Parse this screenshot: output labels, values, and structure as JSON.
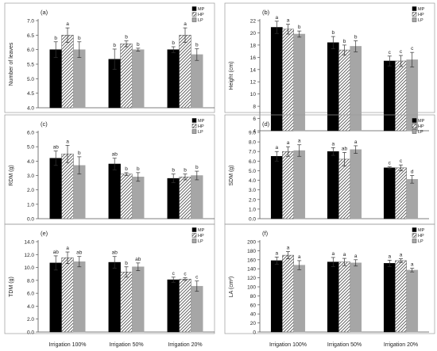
{
  "figure": {
    "legend": [
      "MP",
      "HP",
      "LP"
    ],
    "treatments": [
      "Irrigation 100%",
      "Irrigation 50%",
      "Irrigation 20%"
    ]
  },
  "chart_data": [
    {
      "type": "bar",
      "panel": "(a)",
      "xlabel": "",
      "ylabel": "Number of leaves",
      "ylim": [
        4.0,
        7.0
      ],
      "yticks": [
        "4.0",
        "4.5",
        "5.0",
        "5.5",
        "6.0",
        "6.5",
        "7.0"
      ],
      "categories": [
        "Irrigation 100%",
        "Irrigation 50%",
        "Irrigation 20%"
      ],
      "series": [
        {
          "name": "MP",
          "values": [
            6.0,
            5.67,
            6.0
          ],
          "errors": [
            0.27,
            0.35,
            0.1
          ],
          "letters": [
            "b",
            "b",
            "b"
          ]
        },
        {
          "name": "HP",
          "values": [
            6.5,
            6.2,
            6.5
          ],
          "errors": [
            0.25,
            0.1,
            0.25
          ],
          "letters": [
            "a",
            "b",
            "a"
          ]
        },
        {
          "name": "LP",
          "values": [
            6.0,
            6.0,
            5.83
          ],
          "errors": [
            0.27,
            0.05,
            0.2
          ],
          "letters": [
            "b",
            "b",
            "b"
          ]
        }
      ],
      "legend_position": "top-right",
      "grid": false
    },
    {
      "type": "bar",
      "panel": "(b)",
      "xlabel": "",
      "ylabel": "Height (cm)",
      "ylim": [
        4,
        22
      ],
      "yticks": [
        "4",
        "6",
        "8",
        "10",
        "12",
        "14",
        "16",
        "18",
        "20",
        "22"
      ],
      "categories": [
        "Irrigation 100%",
        "Irrigation 50%",
        "Irrigation 20%"
      ],
      "series": [
        {
          "name": "MP",
          "values": [
            20.9,
            18.4,
            15.4
          ],
          "errors": [
            1.0,
            1.0,
            0.8
          ],
          "letters": [
            "a",
            "b",
            "c"
          ]
        },
        {
          "name": "HP",
          "values": [
            20.6,
            17.2,
            15.4
          ],
          "errors": [
            0.8,
            0.8,
            0.9
          ],
          "letters": [
            "a",
            "b",
            "c"
          ]
        },
        {
          "name": "LP",
          "values": [
            19.8,
            17.8,
            15.6
          ],
          "errors": [
            0.5,
            0.9,
            1.2
          ],
          "letters": [
            "b",
            "b",
            "c"
          ]
        }
      ],
      "legend_position": "top-right",
      "grid": false
    },
    {
      "type": "bar",
      "panel": "(c)",
      "xlabel": "",
      "ylabel": "RDM (g)",
      "ylim": [
        0.0,
        6.0
      ],
      "yticks": [
        "0.0",
        "1.0",
        "2.0",
        "3.0",
        "4.0",
        "5.0",
        "6.0"
      ],
      "categories": [
        "Irrigation 100%",
        "Irrigation 50%",
        "Irrigation 20%"
      ],
      "series": [
        {
          "name": "MP",
          "values": [
            4.2,
            3.8,
            2.8
          ],
          "errors": [
            0.5,
            0.4,
            0.3
          ],
          "letters": [
            "ab",
            "ab",
            "b"
          ]
        },
        {
          "name": "HP",
          "values": [
            4.5,
            3.1,
            2.9
          ],
          "errors": [
            0.6,
            0.1,
            0.2
          ],
          "letters": [
            "a",
            "b",
            "b"
          ]
        },
        {
          "name": "LP",
          "values": [
            3.7,
            2.9,
            3.0
          ],
          "errors": [
            0.6,
            0.3,
            0.3
          ],
          "letters": [
            "b",
            "b",
            "b"
          ]
        }
      ],
      "legend_position": "top-right",
      "grid": false
    },
    {
      "type": "bar",
      "panel": "(d)",
      "xlabel": "",
      "ylabel": "SDM (g)",
      "ylim": [
        0.0,
        9.0
      ],
      "yticks": [
        "0.0",
        "1.0",
        "2.0",
        "3.0",
        "4.0",
        "5.0",
        "6.0",
        "7.0",
        "8.0",
        "9.0"
      ],
      "categories": [
        "Irrigation 100%",
        "Irrigation 50%",
        "Irrigation 20%"
      ],
      "series": [
        {
          "name": "MP",
          "values": [
            6.5,
            7.0,
            5.3
          ],
          "errors": [
            0.5,
            0.4,
            0.1
          ],
          "letters": [
            "a",
            "a",
            "c"
          ]
        },
        {
          "name": "HP",
          "values": [
            7.0,
            6.2,
            5.3
          ],
          "errors": [
            0.5,
            0.7,
            0.3
          ],
          "letters": [
            "a",
            "ab",
            "c"
          ]
        },
        {
          "name": "LP",
          "values": [
            7.1,
            7.2,
            4.1
          ],
          "errors": [
            0.6,
            0.4,
            0.4
          ],
          "letters": [
            "a",
            "a",
            "d"
          ]
        }
      ],
      "legend_position": "top-right",
      "grid": false
    },
    {
      "type": "bar",
      "panel": "(e)",
      "xlabel": "",
      "ylabel": "TDM (g)",
      "ylim": [
        0.0,
        14.0
      ],
      "yticks": [
        "0.0",
        "2.0",
        "4.0",
        "6.0",
        "8.0",
        "10.0",
        "12.0",
        "14.0"
      ],
      "categories": [
        "Irrigation 100%",
        "Irrigation 50%",
        "Irrigation 20%"
      ],
      "series": [
        {
          "name": "MP",
          "values": [
            10.7,
            10.8,
            8.1
          ],
          "errors": [
            1.1,
            0.9,
            0.4
          ],
          "letters": [
            "ab",
            "ab",
            "c"
          ]
        },
        {
          "name": "HP",
          "values": [
            11.5,
            9.3,
            8.2
          ],
          "errors": [
            0.9,
            0.8,
            0.2
          ],
          "letters": [
            "a",
            "b",
            "c"
          ]
        },
        {
          "name": "LP",
          "values": [
            10.9,
            10.1,
            7.1
          ],
          "errors": [
            0.8,
            0.6,
            0.8
          ],
          "letters": [
            "ab",
            "ab",
            "c"
          ]
        }
      ],
      "legend_position": "top-right",
      "grid": false
    },
    {
      "type": "bar",
      "panel": "(f)",
      "xlabel": "",
      "ylabel": "LA (cm²)",
      "ylim": [
        0,
        200
      ],
      "yticks": [
        "0",
        "20",
        "40",
        "60",
        "80",
        "100",
        "120",
        "140",
        "160",
        "180",
        "200"
      ],
      "categories": [
        "Irrigation 100%",
        "Irrigation 50%",
        "Irrigation 20%"
      ],
      "series": [
        {
          "name": "MP",
          "values": [
            158,
            155,
            152
          ],
          "errors": [
            8,
            10,
            7
          ],
          "letters": [
            "a",
            "a",
            "a"
          ]
        },
        {
          "name": "HP",
          "values": [
            170,
            155,
            158
          ],
          "errors": [
            8,
            8,
            4
          ],
          "letters": [
            "a",
            "a",
            "a"
          ]
        },
        {
          "name": "LP",
          "values": [
            148,
            153,
            137
          ],
          "errors": [
            10,
            7,
            4
          ],
          "letters": [
            "a",
            "a",
            "a"
          ]
        }
      ],
      "legend_position": "top-right",
      "grid": false
    }
  ]
}
